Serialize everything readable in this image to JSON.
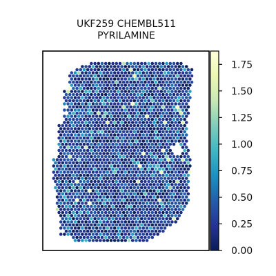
{
  "chart_data": {
    "type": "heatmap",
    "title_lines": [
      "UKF259 CHEMBL511",
      "PYRILAMINE"
    ],
    "xlabel": "",
    "ylabel": "",
    "grid": false,
    "colorbar": {
      "position": "right",
      "colormap": "YlGnBu",
      "range": [
        0,
        1.875
      ],
      "ticks": [
        "0.00",
        "0.25",
        "0.50",
        "0.75",
        "1.00",
        "1.25",
        "1.50",
        "1.75"
      ],
      "tick_values": [
        0,
        0.25,
        0.5,
        0.75,
        1.0,
        1.25,
        1.5,
        1.75
      ],
      "color_stops": [
        "#081d58",
        "#253494",
        "#225ea8",
        "#1d91c0",
        "#41b6c4",
        "#7fcdbb",
        "#c7e9b4",
        "#edf8b1",
        "#ffffd9"
      ]
    },
    "spot_values_summary": {
      "typical_range": [
        0.0,
        0.6
      ],
      "occasional_high": [
        0.6,
        1.2
      ],
      "rare_max": 1.8
    }
  }
}
